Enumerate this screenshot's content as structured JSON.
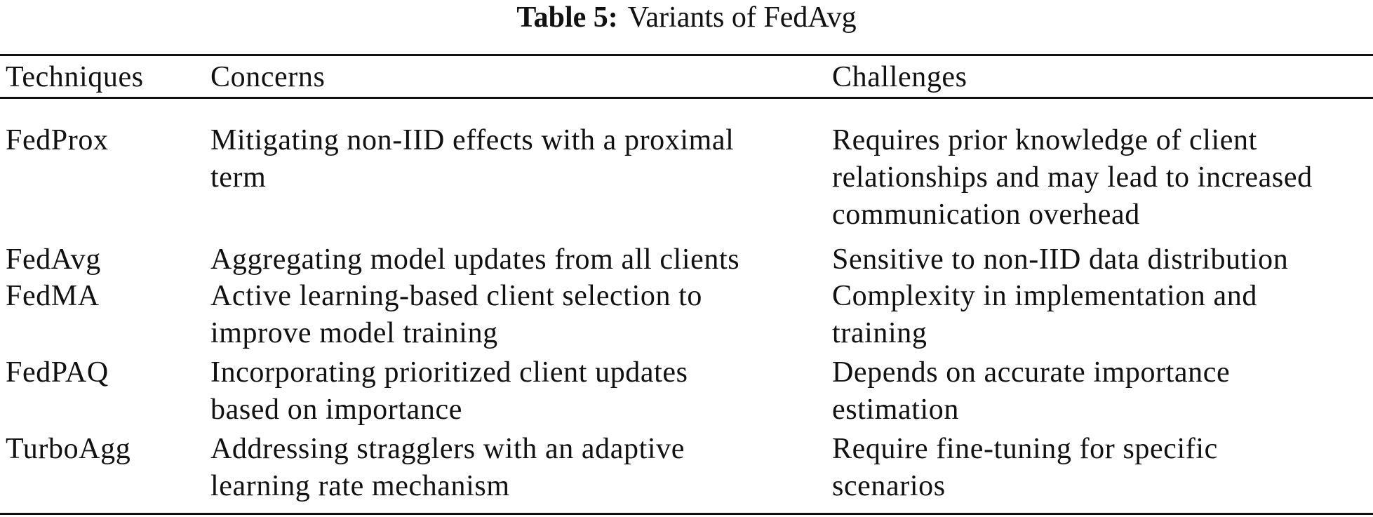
{
  "caption": {
    "label": "Table 5:",
    "text": "Variants of FedAvg"
  },
  "table": {
    "headers": [
      "Techniques",
      "Concerns",
      "Challenges"
    ],
    "rows": [
      {
        "technique": "FedProx",
        "concerns": [
          "Mitigating non-IID effects with a proximal",
          "term"
        ],
        "challenges": [
          "Requires prior knowledge of client",
          "relationships and may lead to increased",
          "communication overhead"
        ]
      },
      {
        "technique": "FedAvg",
        "concerns": [
          "Aggregating model updates from all clients"
        ],
        "challenges": [
          "Sensitive to non-IID data distribution"
        ]
      },
      {
        "technique": "FedMA",
        "concerns": [
          "Active learning-based client selection to",
          "improve model training"
        ],
        "challenges": [
          "Complexity in implementation and",
          "training"
        ]
      },
      {
        "technique": "FedPAQ",
        "concerns": [
          "Incorporating prioritized client updates",
          "based on importance"
        ],
        "challenges": [
          "Depends on accurate importance",
          "estimation"
        ]
      },
      {
        "technique": "TurboAgg",
        "concerns": [
          "Addressing stragglers with an adaptive",
          "learning rate mechanism"
        ],
        "challenges": [
          "Require fine-tuning for specific",
          "scenarios"
        ]
      }
    ]
  }
}
